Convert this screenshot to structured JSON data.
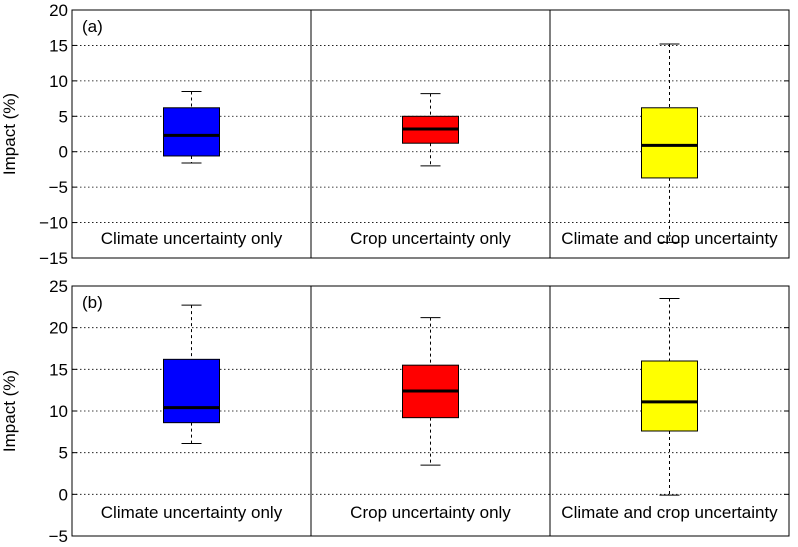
{
  "chart_data": [
    {
      "type": "box",
      "panel_label": "(a)",
      "ylabel": "Impact (%)",
      "ylim": [
        -15,
        20
      ],
      "yticks": [
        -15,
        -10,
        -5,
        0,
        5,
        10,
        15,
        20
      ],
      "grid": true,
      "categories": [
        "Climate uncertainty only",
        "Crop uncertainty only",
        "Climate and crop uncertainty"
      ],
      "colors": [
        "#0000ff",
        "#ff0000",
        "#ffff00"
      ],
      "boxes": [
        {
          "whisker_low": -1.6,
          "q1": -0.6,
          "median": 2.3,
          "q3": 6.2,
          "whisker_high": 8.5
        },
        {
          "whisker_low": -2.0,
          "q1": 1.2,
          "median": 3.2,
          "q3": 5.0,
          "whisker_high": 8.2
        },
        {
          "whisker_low": -12.8,
          "q1": -3.7,
          "median": 0.9,
          "q3": 6.2,
          "whisker_high": 15.2
        }
      ]
    },
    {
      "type": "box",
      "panel_label": "(b)",
      "ylabel": "Impact (%)",
      "ylim": [
        -5,
        25
      ],
      "yticks": [
        -5,
        0,
        5,
        10,
        15,
        20,
        25
      ],
      "grid": true,
      "categories": [
        "Climate uncertainty only",
        "Crop uncertainty only",
        "Climate and crop uncertainty"
      ],
      "colors": [
        "#0000ff",
        "#ff0000",
        "#ffff00"
      ],
      "boxes": [
        {
          "whisker_low": 6.1,
          "q1": 8.6,
          "median": 10.4,
          "q3": 16.2,
          "whisker_high": 22.7
        },
        {
          "whisker_low": 3.5,
          "q1": 9.2,
          "median": 12.4,
          "q3": 15.5,
          "whisker_high": 21.2
        },
        {
          "whisker_low": -0.1,
          "q1": 7.6,
          "median": 11.1,
          "q3": 16.0,
          "whisker_high": 23.5
        }
      ]
    }
  ]
}
